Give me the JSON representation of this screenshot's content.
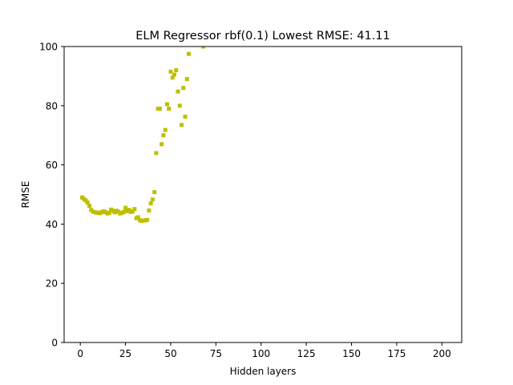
{
  "chart_data": {
    "type": "scatter",
    "title": "ELM Regressor rbf(0.1) Lowest RMSE: 41.11",
    "xlabel": "Hidden layers",
    "ylabel": "RMSE",
    "xlim": [
      -8.95,
      210.95
    ],
    "ylim": [
      0,
      100
    ],
    "xticks": [
      0,
      25,
      50,
      75,
      100,
      125,
      150,
      175,
      200
    ],
    "yticks": [
      0,
      20,
      40,
      60,
      80,
      100
    ],
    "grid": false,
    "marker": "square",
    "color": "#bfbf00",
    "series": [
      {
        "x": [
          1,
          2,
          3,
          4,
          5,
          6,
          7,
          8,
          9,
          10,
          11,
          12,
          13,
          14,
          15,
          16,
          17,
          18,
          19,
          20,
          21,
          22,
          23,
          24,
          25,
          26,
          27,
          28,
          29,
          30,
          31,
          32,
          33,
          34,
          35,
          36,
          37,
          38,
          39,
          40,
          41,
          42,
          43,
          44,
          45,
          46,
          47,
          48,
          49,
          50,
          51,
          52,
          53,
          54,
          55,
          56,
          57,
          58,
          59,
          60,
          68
        ],
        "y": [
          49.0,
          48.5,
          48.0,
          47.3,
          46.2,
          44.8,
          44.2,
          44.0,
          43.9,
          43.8,
          43.7,
          44.1,
          44.3,
          44.0,
          43.6,
          43.8,
          44.9,
          44.5,
          44.0,
          44.5,
          44.2,
          43.6,
          43.8,
          44.1,
          45.5,
          44.4,
          44.8,
          44.1,
          44.3,
          45.1,
          42.0,
          42.3,
          41.3,
          41.1,
          41.2,
          41.3,
          41.4,
          44.6,
          47.0,
          48.3,
          50.8,
          64.0,
          79.0,
          79.0,
          67.0,
          70.0,
          71.8,
          80.5,
          79.0,
          91.5,
          89.5,
          90.5,
          92.0,
          84.8,
          80.0,
          73.5,
          86.0,
          76.3,
          89.0,
          97.5,
          100.0
        ]
      }
    ]
  }
}
